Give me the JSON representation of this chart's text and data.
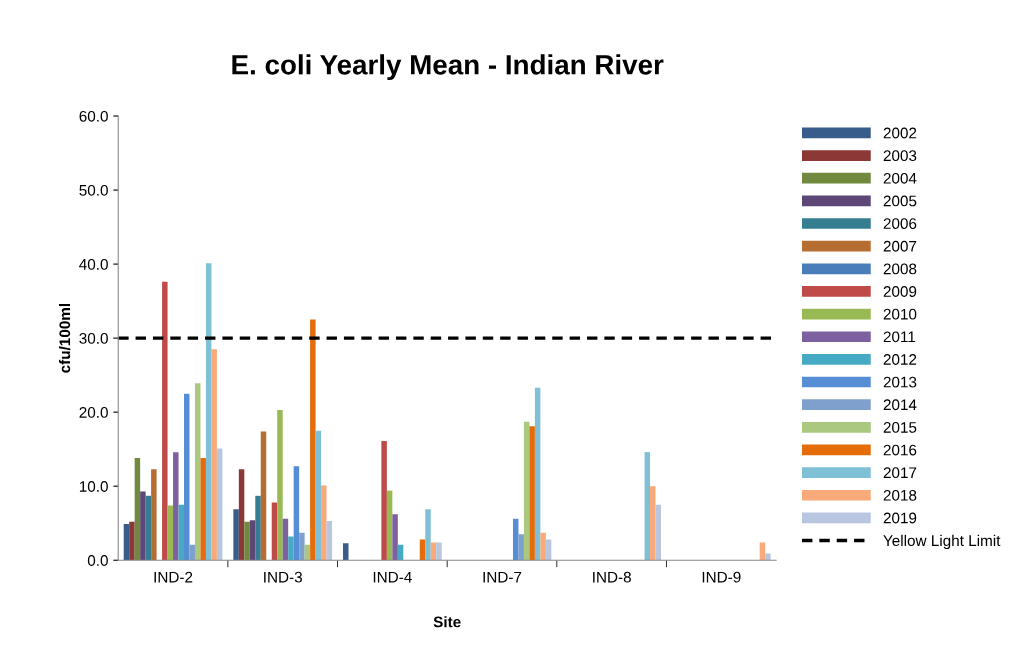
{
  "chart_data": {
    "type": "bar",
    "title": "E. coli Yearly Mean - Indian River",
    "xlabel": "Site",
    "ylabel": "cfu/100ml",
    "categories": [
      "IND-2",
      "IND-3",
      "IND-4",
      "IND-7",
      "IND-8",
      "IND-9"
    ],
    "ylim": [
      0,
      60
    ],
    "yticks": [
      {
        "value": 0,
        "label": "0.0"
      },
      {
        "value": 10,
        "label": "10.0"
      },
      {
        "value": 20,
        "label": "20.0"
      },
      {
        "value": 30,
        "label": "30.0"
      },
      {
        "value": 40,
        "label": "40.0"
      },
      {
        "value": 50,
        "label": "50.0"
      },
      {
        "value": 60,
        "label": "60.0"
      }
    ],
    "grid": false,
    "legend": "right",
    "series": [
      {
        "name": "2002",
        "color": "#385d8a",
        "values": [
          4.9,
          6.9,
          2.3,
          0,
          0,
          0
        ]
      },
      {
        "name": "2003",
        "color": "#8c3836",
        "values": [
          5.2,
          12.3,
          0,
          0,
          0,
          0
        ]
      },
      {
        "name": "2004",
        "color": "#71893f",
        "values": [
          13.8,
          5.2,
          0,
          0,
          0,
          0
        ]
      },
      {
        "name": "2005",
        "color": "#5c4776",
        "values": [
          9.3,
          5.4,
          0,
          0,
          0,
          0
        ]
      },
      {
        "name": "2006",
        "color": "#357d91",
        "values": [
          8.7,
          8.7,
          0,
          0,
          0,
          0
        ]
      },
      {
        "name": "2007",
        "color": "#b66d31",
        "values": [
          12.3,
          17.4,
          0,
          0,
          0,
          0
        ]
      },
      {
        "name": "2008",
        "color": "#4a7ebb",
        "values": [
          0,
          0,
          0,
          0,
          0,
          0
        ]
      },
      {
        "name": "2009",
        "color": "#be4b48",
        "values": [
          37.6,
          7.8,
          16.1,
          0,
          0,
          0
        ]
      },
      {
        "name": "2010",
        "color": "#98b954",
        "values": [
          7.4,
          20.3,
          9.4,
          0,
          0,
          0
        ]
      },
      {
        "name": "2011",
        "color": "#7d60a0",
        "values": [
          14.6,
          5.6,
          6.2,
          0,
          0,
          0
        ]
      },
      {
        "name": "2012",
        "color": "#46aac5",
        "values": [
          7.5,
          3.2,
          2.1,
          0,
          0,
          0
        ]
      },
      {
        "name": "2013",
        "color": "#558ed5",
        "values": [
          22.5,
          12.7,
          0,
          5.6,
          0,
          0
        ]
      },
      {
        "name": "2014",
        "color": "#7f9fcd",
        "values": [
          2.1,
          3.7,
          0,
          3.5,
          0,
          0
        ]
      },
      {
        "name": "2015",
        "color": "#aac87e",
        "values": [
          23.9,
          2.1,
          0,
          18.7,
          0,
          0
        ]
      },
      {
        "name": "2016",
        "color": "#e46c0a",
        "values": [
          13.8,
          32.5,
          2.8,
          18.1,
          0,
          0
        ]
      },
      {
        "name": "2017",
        "color": "#7fc0d6",
        "values": [
          40.1,
          17.5,
          6.9,
          23.3,
          14.6,
          0
        ]
      },
      {
        "name": "2018",
        "color": "#f9aa7a",
        "values": [
          28.5,
          10.1,
          2.4,
          3.7,
          10.0,
          2.4
        ]
      },
      {
        "name": "2019",
        "color": "#b9c6e0",
        "values": [
          15.1,
          5.3,
          2.4,
          2.8,
          7.5,
          0.9
        ]
      }
    ],
    "ref_lines": [
      {
        "axis": "y",
        "value": 30,
        "label": "Yellow Light Limit",
        "color": "#000000",
        "line_style": "dashed"
      }
    ]
  }
}
